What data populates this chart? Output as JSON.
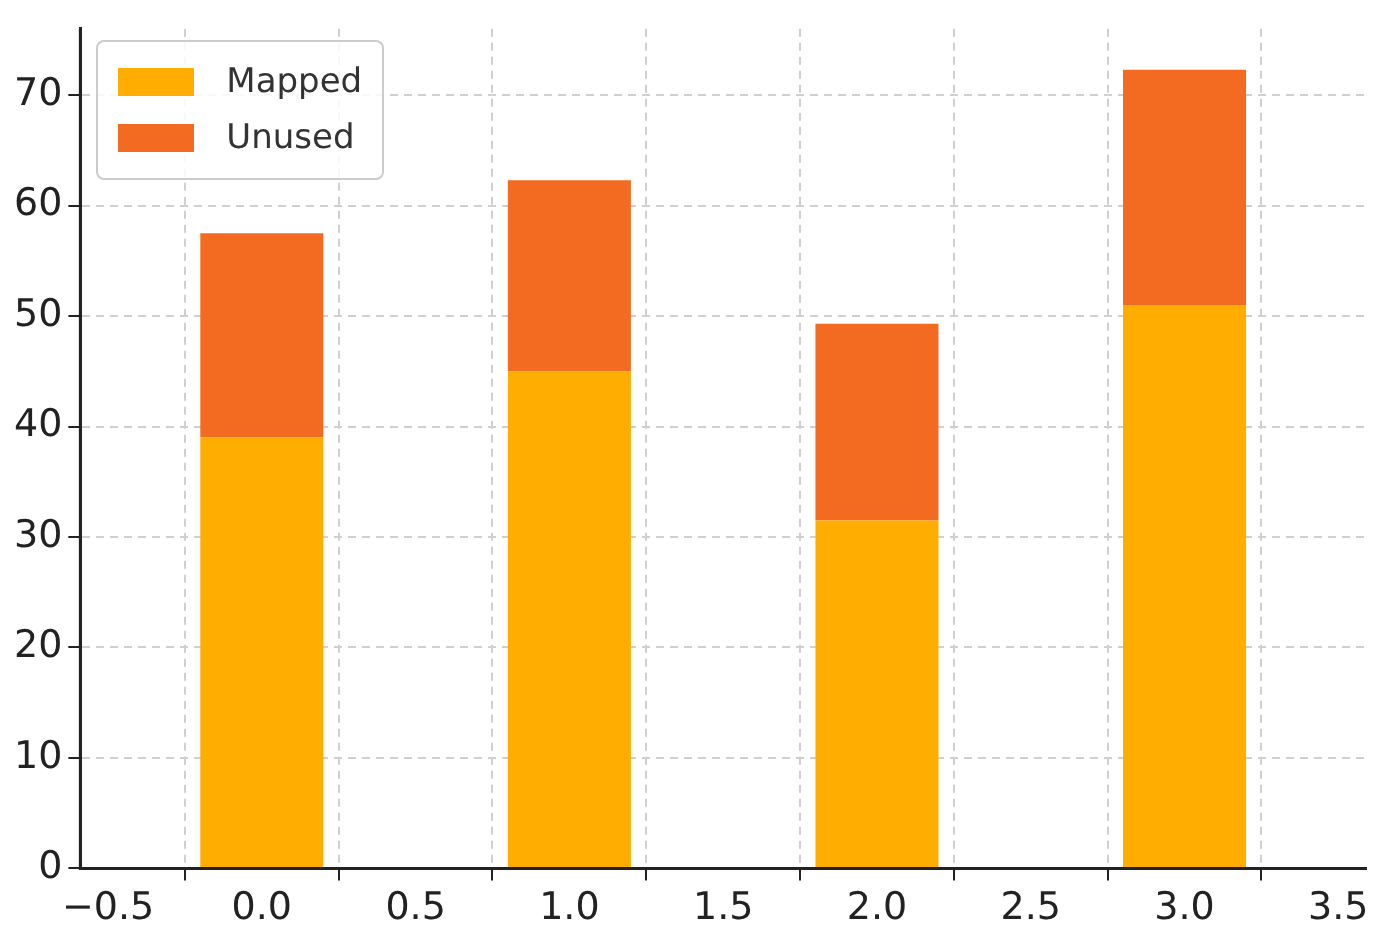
{
  "chart_data": {
    "type": "bar",
    "stacked": true,
    "x": [
      0,
      1,
      2,
      3
    ],
    "series": [
      {
        "name": "Mapped",
        "color": "#ffad00",
        "values": [
          39,
          45,
          31.5,
          51
        ]
      },
      {
        "name": "Unused",
        "color": "#f26b21",
        "values": [
          18.5,
          17.3,
          17.8,
          21.3
        ]
      }
    ],
    "xlim": [
      -0.59,
      3.59
    ],
    "xticks": [
      {
        "value": -0.5,
        "label": "−0.5"
      },
      {
        "value": 0,
        "label": "0.0"
      },
      {
        "value": 0.5,
        "label": "0.5"
      },
      {
        "value": 1,
        "label": "1.0"
      },
      {
        "value": 1.5,
        "label": "1.5"
      },
      {
        "value": 2,
        "label": "2.0"
      },
      {
        "value": 2.5,
        "label": "2.5"
      },
      {
        "value": 3,
        "label": "3.0"
      },
      {
        "value": 3.5,
        "label": "3.5"
      }
    ],
    "ylim": [
      0,
      76
    ],
    "yticks": [
      0,
      10,
      20,
      30,
      40,
      50,
      60,
      70
    ],
    "grid": true,
    "legend": "top left"
  }
}
